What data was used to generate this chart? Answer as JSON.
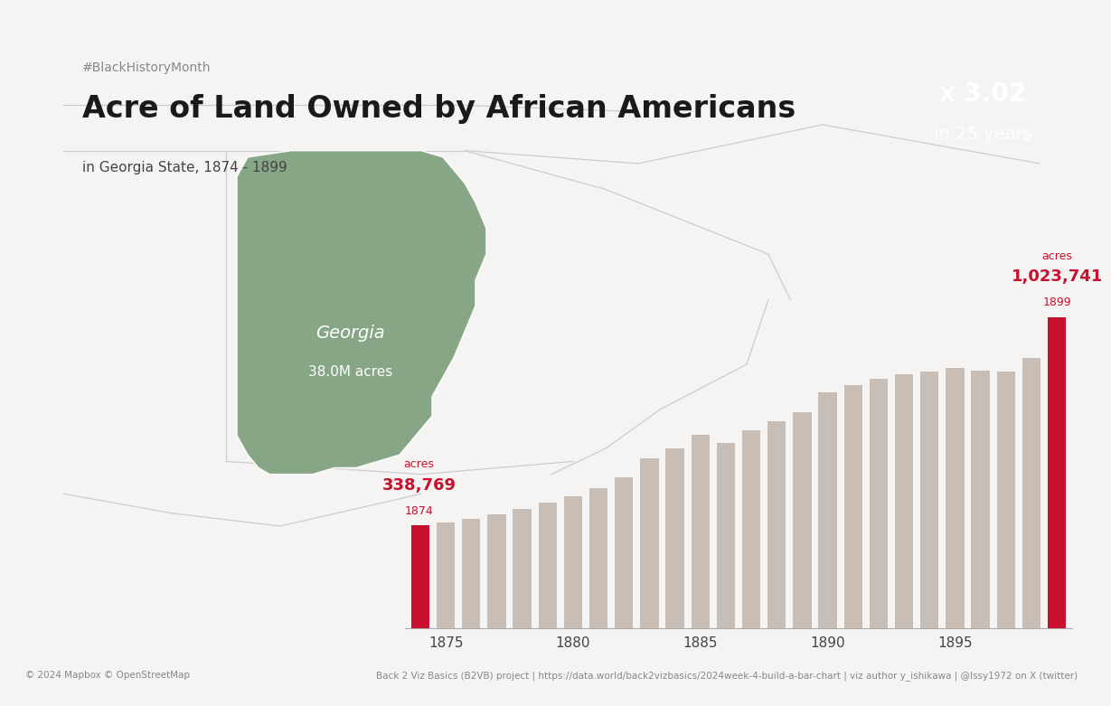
{
  "years": [
    1874,
    1875,
    1876,
    1877,
    1878,
    1879,
    1880,
    1881,
    1882,
    1883,
    1884,
    1885,
    1886,
    1887,
    1888,
    1889,
    1890,
    1891,
    1892,
    1893,
    1894,
    1895,
    1896,
    1897,
    1898,
    1899
  ],
  "values": [
    338769,
    346000,
    358000,
    373000,
    393000,
    413000,
    435000,
    460000,
    495000,
    560000,
    590000,
    635000,
    610000,
    650000,
    680000,
    710000,
    775000,
    800000,
    820000,
    835000,
    845000,
    855000,
    848000,
    845000,
    890000,
    1023741
  ],
  "bar_color_default": "#C8BEB5",
  "bar_color_highlight": "#C8102E",
  "background_color": "#F5F4F2",
  "title_tag": "#BlackHistoryMonth",
  "title_main": "Acre of Land Owned by African Americans",
  "title_sub": "in Georgia State, 1874 - 1899",
  "box_multiplier": "x 3.02",
  "box_sub": "in 25 years",
  "box_color": "#C8102E",
  "annotation_1874_year": "1874",
  "annotation_1874_value": "338,769",
  "annotation_1874_label": "acres",
  "annotation_1899_year": "1899",
  "annotation_1899_value": "1,023,741",
  "annotation_1899_label": "acres",
  "annotation_color": "#C8102E",
  "georgia_label": "Georgia",
  "georgia_sub": "38.0M acres",
  "georgia_color": "#7A9E7A",
  "footer_text": "Back 2 Viz Basics (B2VB) project | https://data.world/back2vizbasics/2024week-4-build-a-bar-chart | viz author y_ishikawa | @Issy1972 on X (twitter)",
  "copyright_text": "© 2024 Mapbox © OpenStreetMap",
  "map_line_color": "#CCCCCC",
  "map_bg_color": "#FFFFFF",
  "title_bg_color": "#EEECE9"
}
